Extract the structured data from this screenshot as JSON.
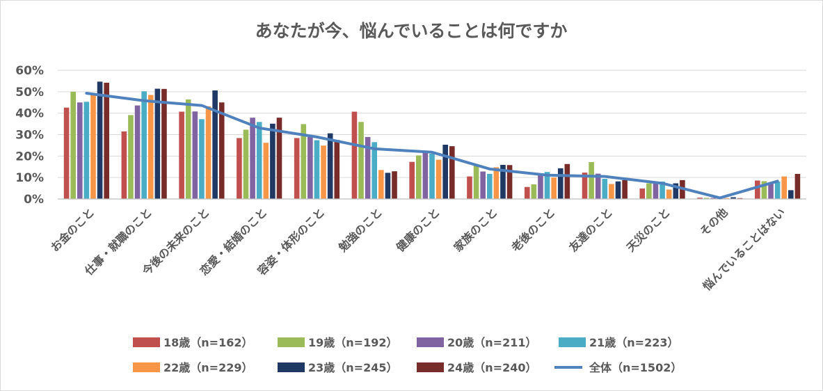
{
  "chart_data": {
    "type": "bar",
    "title": "あなたが今、悩んでいることは何ですか",
    "xlabel": "",
    "ylabel": "",
    "ylim": [
      0,
      60
    ],
    "y_ticks": [
      "0%",
      "10%",
      "20%",
      "30%",
      "40%",
      "50%",
      "60%"
    ],
    "y_tick_values": [
      0,
      10,
      20,
      30,
      40,
      50,
      60
    ],
    "grid": true,
    "legend_position": "bottom",
    "categories": [
      "お金のこと",
      "仕事・就職のこと",
      "今後の未来のこと",
      "恋愛・結婚のこと",
      "容姿・体形のこと",
      "勉強のこと",
      "健康のこと",
      "家族のこと",
      "老後のこと",
      "友達のこと",
      "天災のこと",
      "その他",
      "悩んでいることはない"
    ],
    "series": [
      {
        "name": "18歳（n=162）",
        "type": "bar",
        "color": "#c0504d",
        "values": [
          42.6,
          31.5,
          40.7,
          28.4,
          28.4,
          40.7,
          17.3,
          10.5,
          5.6,
          12.3,
          4.9,
          0.6,
          8.6
        ]
      },
      {
        "name": "19歳（n=192）",
        "type": "bar",
        "color": "#9bbb59",
        "values": [
          50.0,
          39.1,
          46.4,
          32.3,
          34.9,
          35.9,
          20.3,
          15.6,
          6.8,
          17.2,
          7.3,
          0.5,
          8.3
        ]
      },
      {
        "name": "20歳（n=211）",
        "type": "bar",
        "color": "#8064a2",
        "values": [
          45.0,
          43.6,
          40.8,
          37.9,
          28.9,
          28.9,
          22.3,
          12.8,
          11.4,
          11.8,
          8.1,
          0.5,
          7.6
        ]
      },
      {
        "name": "21歳（n=223）",
        "type": "bar",
        "color": "#4bacc6",
        "values": [
          45.3,
          50.2,
          37.2,
          35.9,
          27.4,
          26.5,
          21.1,
          11.7,
          12.6,
          9.4,
          8.1,
          0.4,
          8.1
        ]
      },
      {
        "name": "22歳（n=229）",
        "type": "bar",
        "color": "#f79646",
        "values": [
          48.5,
          48.5,
          43.2,
          26.2,
          24.9,
          13.5,
          18.3,
          14.8,
          10.0,
          7.0,
          4.4,
          0.4,
          10.5
        ]
      },
      {
        "name": "23歳（n=245）",
        "type": "bar",
        "color": "#1f3864",
        "values": [
          54.7,
          51.4,
          50.6,
          35.1,
          30.6,
          12.2,
          25.3,
          15.9,
          14.3,
          8.2,
          7.3,
          0.8,
          4.1
        ]
      },
      {
        "name": "24歳（n=240）",
        "type": "bar",
        "color": "#772c2a",
        "values": [
          54.2,
          51.3,
          45.0,
          37.9,
          27.5,
          12.9,
          24.6,
          15.8,
          16.3,
          8.8,
          8.8,
          0.4,
          11.7
        ]
      },
      {
        "name": "全体（n=1502）",
        "type": "line",
        "color": "#4f81bd",
        "values": [
          49.3,
          45.8,
          43.6,
          33.1,
          28.9,
          23.4,
          21.8,
          14.0,
          11.1,
          10.5,
          7.3,
          0.5,
          8.3
        ]
      }
    ]
  }
}
